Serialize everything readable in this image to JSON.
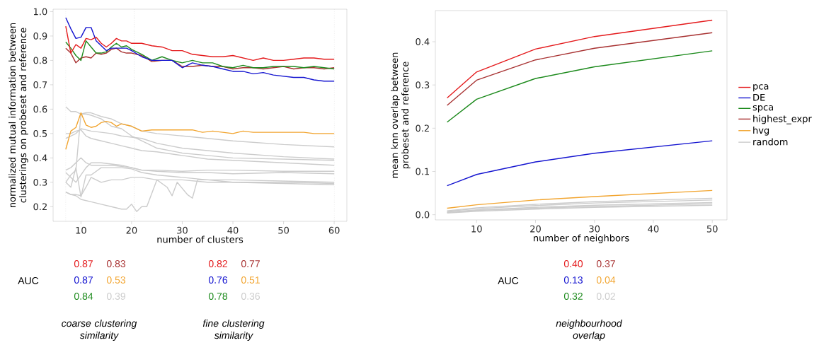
{
  "chart_data": [
    {
      "type": "line",
      "xlabel": "number of clusters",
      "ylabel": "normalized mutual information between clusterings on probeset and reference",
      "xlim": [
        4.5,
        62.5
      ],
      "ylim": [
        0.14,
        1.01
      ],
      "xticks": [
        10,
        20,
        30,
        40,
        50,
        60
      ],
      "yticks": [
        0.2,
        0.3,
        0.4,
        0.5,
        0.6,
        0.7,
        0.8,
        0.9,
        {
          "value": 1,
          "label": "1.0"
        }
      ],
      "legend": false,
      "x": [
        7,
        8,
        9,
        10,
        11,
        12,
        13,
        14,
        15,
        16,
        17,
        18,
        19,
        20,
        22,
        24,
        26,
        28,
        30,
        32,
        34,
        36,
        38,
        40,
        42,
        44,
        46,
        48,
        50,
        52,
        54,
        56,
        58,
        60
      ],
      "series": [
        {
          "color": "#e41a1c",
          "values": [
            0.94,
            0.83,
            0.865,
            0.85,
            0.89,
            0.885,
            0.895,
            0.87,
            0.855,
            0.87,
            0.89,
            0.88,
            0.88,
            0.87,
            0.87,
            0.86,
            0.855,
            0.84,
            0.84,
            0.825,
            0.82,
            0.815,
            0.815,
            0.82,
            0.81,
            0.8,
            0.81,
            0.8,
            0.8,
            0.805,
            0.81,
            0.81,
            0.805,
            0.805
          ]
        },
        {
          "color": "#1515d0",
          "values": [
            0.975,
            0.93,
            0.89,
            0.895,
            0.935,
            0.935,
            0.88,
            0.86,
            0.84,
            0.85,
            0.85,
            0.85,
            0.85,
            0.84,
            0.815,
            0.8,
            0.8,
            0.8,
            0.77,
            0.79,
            0.78,
            0.775,
            0.765,
            0.755,
            0.755,
            0.745,
            0.75,
            0.74,
            0.735,
            0.73,
            0.73,
            0.72,
            0.715,
            0.715
          ]
        },
        {
          "color": "#1c8a1c",
          "values": [
            0.875,
            0.85,
            0.82,
            0.8,
            0.88,
            0.855,
            0.83,
            0.83,
            0.835,
            0.855,
            0.87,
            0.855,
            0.86,
            0.845,
            0.825,
            0.8,
            0.815,
            0.8,
            0.79,
            0.8,
            0.79,
            0.79,
            0.775,
            0.77,
            0.78,
            0.77,
            0.77,
            0.775,
            0.775,
            0.775,
            0.77,
            0.775,
            0.77,
            0.765
          ]
        },
        {
          "color": "#a83232",
          "values": [
            0.85,
            0.83,
            0.79,
            0.81,
            0.815,
            0.81,
            0.83,
            0.825,
            0.83,
            0.845,
            0.85,
            0.835,
            0.83,
            0.83,
            0.82,
            0.795,
            0.8,
            0.8,
            0.775,
            0.775,
            0.78,
            0.775,
            0.775,
            0.765,
            0.77,
            0.77,
            0.765,
            0.77,
            0.775,
            0.765,
            0.77,
            0.77,
            0.765,
            0.77
          ]
        },
        {
          "color": "#f2a530",
          "values": [
            0.435,
            0.51,
            0.525,
            0.585,
            0.535,
            0.525,
            0.53,
            0.545,
            0.55,
            0.545,
            0.53,
            0.54,
            0.535,
            0.53,
            0.51,
            0.515,
            0.515,
            0.515,
            0.515,
            0.515,
            0.505,
            0.51,
            0.505,
            0.5,
            0.51,
            0.505,
            0.505,
            0.505,
            0.505,
            0.505,
            0.505,
            0.5,
            0.5,
            0.5
          ]
        },
        {
          "color": "#cccccc",
          "x": [
            7,
            8,
            9,
            10,
            11,
            12,
            14,
            16,
            18,
            20,
            22,
            25,
            30,
            35,
            40,
            50,
            60
          ],
          "values": [
            0.61,
            0.59,
            0.59,
            0.58,
            0.585,
            0.585,
            0.57,
            0.56,
            0.54,
            0.53,
            0.51,
            0.5,
            0.49,
            0.48,
            0.47,
            0.455,
            0.445
          ]
        },
        {
          "color": "#cccccc",
          "x": [
            7,
            8,
            9,
            10,
            11,
            12,
            14,
            16,
            18,
            20,
            22,
            25,
            30,
            35,
            40,
            50,
            60
          ],
          "values": [
            0.48,
            0.49,
            0.5,
            0.52,
            0.515,
            0.51,
            0.505,
            0.5,
            0.49,
            0.485,
            0.48,
            0.46,
            0.44,
            0.43,
            0.42,
            0.405,
            0.395
          ]
        },
        {
          "color": "#cccccc",
          "x": [
            7,
            8,
            9,
            10,
            11,
            12,
            14,
            16,
            18,
            20,
            22,
            25,
            30,
            35,
            40,
            50,
            60
          ],
          "values": [
            0.5,
            0.5,
            0.51,
            0.515,
            0.49,
            0.48,
            0.47,
            0.46,
            0.45,
            0.44,
            0.43,
            0.425,
            0.41,
            0.395,
            0.39,
            0.38,
            0.37
          ]
        },
        {
          "color": "#cccccc",
          "x": [
            7,
            8,
            9,
            10,
            11,
            12,
            14,
            16,
            18,
            20,
            22,
            25,
            30,
            35,
            40,
            50,
            60
          ],
          "values": [
            0.3,
            0.33,
            0.35,
            0.58,
            0.58,
            0.575,
            0.56,
            0.53,
            0.52,
            0.49,
            0.47,
            0.44,
            0.42,
            0.41,
            0.4,
            0.395,
            0.39
          ]
        },
        {
          "color": "#cccccc",
          "x": [
            7,
            8,
            9,
            10,
            11,
            12,
            14,
            16,
            18,
            20,
            22,
            25,
            30,
            35,
            40,
            50,
            60
          ],
          "values": [
            0.35,
            0.36,
            0.38,
            0.4,
            0.38,
            0.37,
            0.37,
            0.37,
            0.365,
            0.36,
            0.35,
            0.35,
            0.345,
            0.35,
            0.35,
            0.345,
            0.345
          ]
        },
        {
          "color": "#cccccc",
          "x": [
            7,
            8,
            9,
            10,
            11,
            12,
            14,
            16,
            18,
            20,
            22,
            25,
            30,
            35,
            40,
            50,
            60
          ],
          "values": [
            0.34,
            0.32,
            0.3,
            0.33,
            0.36,
            0.38,
            0.38,
            0.375,
            0.37,
            0.36,
            0.35,
            0.345,
            0.34,
            0.34,
            0.335,
            0.34,
            0.335
          ]
        },
        {
          "color": "#cccccc",
          "x": [
            7,
            8,
            9,
            10,
            11,
            12,
            14,
            16,
            18,
            20,
            22,
            25,
            30,
            35,
            40,
            50,
            60
          ],
          "values": [
            0.3,
            0.28,
            0.36,
            0.24,
            0.33,
            0.33,
            0.36,
            0.36,
            0.36,
            0.355,
            0.34,
            0.33,
            0.32,
            0.31,
            0.31,
            0.305,
            0.3
          ]
        },
        {
          "color": "#cccccc",
          "x": [
            7,
            8,
            9,
            10,
            11,
            12,
            14,
            16,
            18,
            20,
            22,
            25,
            30,
            35,
            40,
            50,
            60
          ],
          "values": [
            0.26,
            0.25,
            0.25,
            0.245,
            0.28,
            0.32,
            0.3,
            0.31,
            0.31,
            0.32,
            0.32,
            0.31,
            0.31,
            0.3,
            0.3,
            0.3,
            0.295
          ]
        },
        {
          "color": "#cccccc",
          "x": [
            7,
            8,
            9,
            10,
            12,
            14,
            16,
            18,
            19,
            20,
            21,
            22,
            23,
            25,
            27,
            28,
            29,
            31,
            32,
            33,
            35,
            40,
            50,
            60
          ],
          "values": [
            0.26,
            0.25,
            0.245,
            0.23,
            0.22,
            0.21,
            0.2,
            0.19,
            0.19,
            0.21,
            0.18,
            0.2,
            0.2,
            0.31,
            0.28,
            0.245,
            0.3,
            0.25,
            0.235,
            0.31,
            0.31,
            0.3,
            0.295,
            0.29
          ]
        }
      ],
      "ref_lines": [
        {
          "axis": "x",
          "value": 7,
          "color": "#bbbbbb",
          "line_style": "dotted"
        },
        {
          "axis": "x",
          "value": 20.5,
          "color": "#bbbbbb",
          "line_style": "dotted"
        },
        {
          "axis": "x",
          "value": 60,
          "color": "#bbbbbb",
          "line_style": "dotted"
        }
      ],
      "annotations": [
        "AUC",
        "0.87",
        "0.83",
        "0.87",
        "0.53",
        "0.84",
        "0.39",
        "coarse clustering similarity",
        "0.82",
        "0.77",
        "0.76",
        "0.51",
        "0.78",
        "0.36",
        "fine clustering similarity"
      ]
    },
    {
      "type": "line",
      "xlabel": "number of neighbors",
      "ylabel": "mean knn overlap between probeset and reference",
      "xlim": [
        3,
        52.5
      ],
      "ylim": [
        -0.012,
        0.472
      ],
      "xticks": [
        10,
        20,
        30,
        40,
        50
      ],
      "yticks": [
        {
          "value": 0,
          "label": "0.0"
        },
        0.1,
        0.2,
        0.3,
        0.4
      ],
      "legend": "right",
      "x": [
        5,
        10,
        20,
        30,
        50
      ],
      "series": [
        {
          "name": "pca",
          "color": "#e41a1c",
          "values": [
            0.27,
            0.33,
            0.383,
            0.412,
            0.45
          ]
        },
        {
          "name": "DE",
          "color": "#1515d0",
          "values": [
            0.067,
            0.093,
            0.122,
            0.142,
            0.171
          ]
        },
        {
          "name": "spca",
          "color": "#1c8a1c",
          "values": [
            0.214,
            0.267,
            0.315,
            0.342,
            0.379
          ]
        },
        {
          "name": "highest_expr",
          "color": "#a83232",
          "values": [
            0.253,
            0.311,
            0.358,
            0.385,
            0.421
          ]
        },
        {
          "name": "hvg",
          "color": "#f2a530",
          "values": [
            0.015,
            0.023,
            0.034,
            0.042,
            0.056
          ]
        },
        {
          "name": "random",
          "color": "#cccccc",
          "values": [
            0.009,
            0.016,
            0.024,
            0.03,
            0.038
          ]
        },
        {
          "color": "#cccccc",
          "values": [
            0.008,
            0.014,
            0.021,
            0.027,
            0.034
          ]
        },
        {
          "color": "#cccccc",
          "values": [
            0.006,
            0.011,
            0.017,
            0.022,
            0.028
          ]
        },
        {
          "color": "#cccccc",
          "values": [
            0.005,
            0.01,
            0.015,
            0.019,
            0.025
          ]
        },
        {
          "color": "#cccccc",
          "values": [
            0.004,
            0.008,
            0.013,
            0.017,
            0.022
          ]
        }
      ],
      "annotations": [
        "AUC",
        "0.40",
        "0.37",
        "0.13",
        "0.04",
        "0.32",
        "0.02",
        "neighbourhood overlap"
      ]
    }
  ]
}
